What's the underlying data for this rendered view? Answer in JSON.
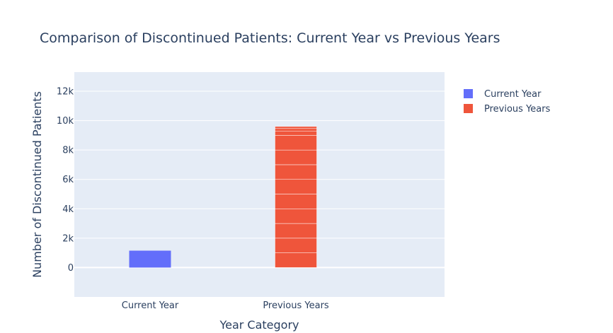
{
  "chart_data": {
    "type": "bar",
    "title": "Comparison of Discontinued Patients: Current Year vs Previous Years",
    "xlabel": "Year Category",
    "ylabel": "Number of Discontinued Patients",
    "categories": [
      "Current Year",
      "Previous Years"
    ],
    "series": [
      {
        "name": "Current Year",
        "category": "Current Year",
        "color": "#636efa",
        "segments": [
          1150
        ]
      },
      {
        "name": "Previous Years",
        "category": "Previous Years",
        "color": "#ef553b",
        "segments": [
          1000,
          1000,
          1000,
          1000,
          1000,
          1000,
          1000,
          1000,
          1000,
          270,
          190,
          140
        ]
      }
    ],
    "ylim": [
      -2000,
      13300
    ],
    "yticks": [
      0,
      2000,
      4000,
      6000,
      8000,
      10000,
      12000
    ],
    "ytick_labels": [
      "0",
      "2k",
      "4k",
      "6k",
      "8k",
      "10k",
      "12k"
    ],
    "grid": true,
    "legend_position": "top-right",
    "plot_background": "#e5ecf6"
  }
}
